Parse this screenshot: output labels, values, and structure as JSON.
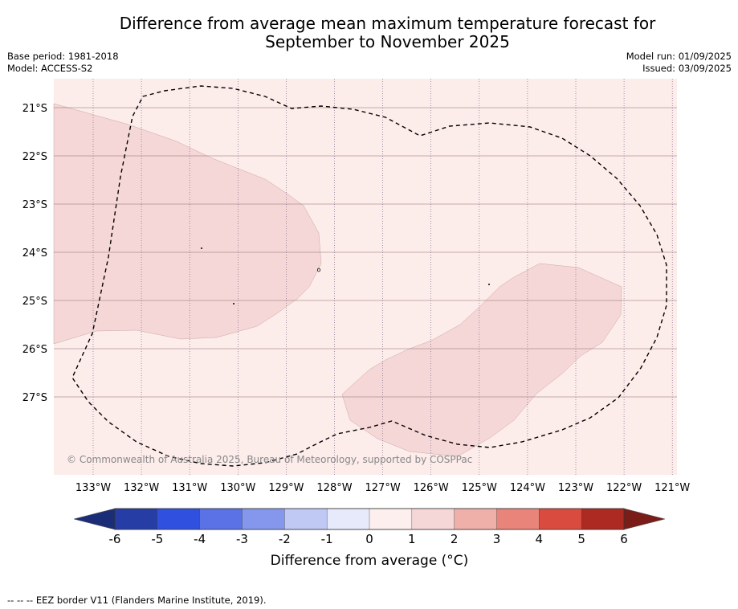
{
  "title_line1": "Difference from average mean maximum temperature forecast for",
  "title_line2": "September to November 2025",
  "meta": {
    "base_period": "Base period: 1981-2018",
    "model": "Model: ACCESS-S2",
    "model_run": "Model run: 01/09/2025",
    "issued": "Issued: 03/09/2025"
  },
  "copyright": "© Commonwealth of Australia 2025, Bureau of Meteorology, supported by COSPPac",
  "lat_labels": [
    "21°S",
    "22°S",
    "23°S",
    "24°S",
    "25°S",
    "26°S",
    "27°S"
  ],
  "lon_labels": [
    "133°W",
    "132°W",
    "131°W",
    "130°W",
    "129°W",
    "128°W",
    "127°W",
    "126°W",
    "125°W",
    "124°W",
    "123°W",
    "122°W",
    "121°W"
  ],
  "colorbar": {
    "ticks": [
      "-6",
      "-5",
      "-4",
      "-3",
      "-2",
      "-1",
      "0",
      "1",
      "2",
      "3",
      "4",
      "5",
      "6"
    ],
    "colors": [
      "#263da5",
      "#3050e0",
      "#5a72e6",
      "#8597ec",
      "#c0c8f4",
      "#e7eafb",
      "#fcefed",
      "#f5d7d7",
      "#efb0aa",
      "#e8847a",
      "#d94b3f",
      "#ad2a22"
    ],
    "under_color": "#1c2d78",
    "over_color": "#7a1c17",
    "label": "Difference from average (°C)"
  },
  "map": {
    "background_color": "#fcecea",
    "anomaly_color": "#f5d7d7",
    "category_shown": "1 to 2"
  },
  "footer": "--  --  -- EEZ border V11 (Flanders Marine Institute, 2019)."
}
